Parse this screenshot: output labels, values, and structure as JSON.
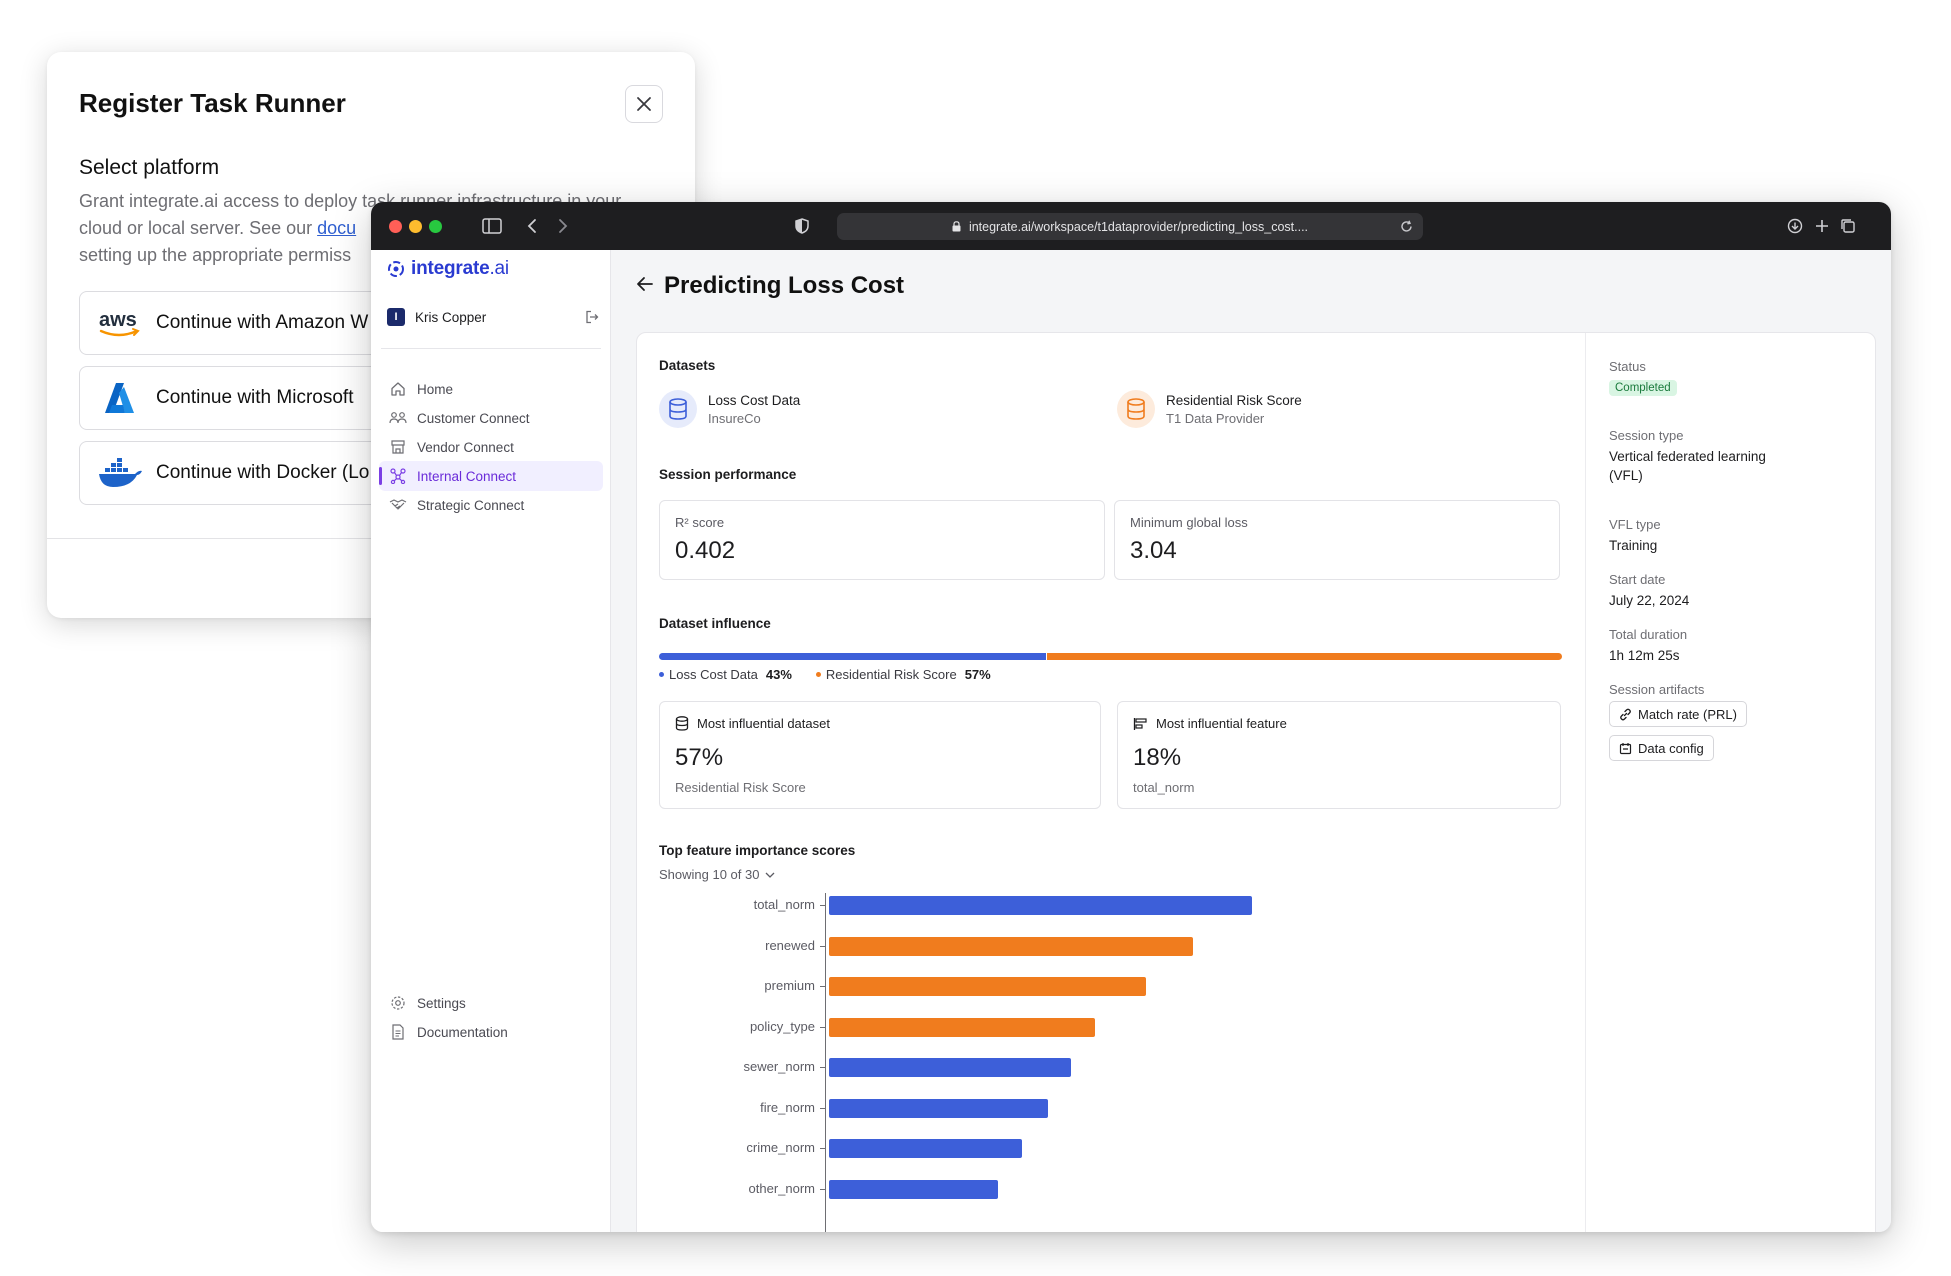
{
  "modal": {
    "title": "Register Task Runner",
    "subtitle": "Select platform",
    "desc_before_link": "Grant integrate.ai access to deploy task runner infrastructure in your cloud or local server. See our ",
    "desc_link": "docu",
    "desc_after_link": "setting up the appropriate permiss",
    "providers": [
      {
        "label": "Continue with Amazon W",
        "icon": "aws-logo"
      },
      {
        "label": "Continue with Microsoft",
        "icon": "azure-logo"
      },
      {
        "label": "Continue with Docker (Lo",
        "icon": "docker-logo"
      }
    ]
  },
  "browser": {
    "url": "integrate.ai/workspace/t1dataprovider/predicting_loss_cost...."
  },
  "sidebar": {
    "brand_bold": "integrate",
    "brand_rest": ".ai",
    "user_initial": "I",
    "user_name": "Kris Copper",
    "items": [
      {
        "label": "Home",
        "icon": "home-icon"
      },
      {
        "label": "Customer Connect",
        "icon": "customers-icon"
      },
      {
        "label": "Vendor Connect",
        "icon": "store-icon"
      },
      {
        "label": "Internal Connect",
        "icon": "network-icon",
        "active": true
      },
      {
        "label": "Strategic Connect",
        "icon": "handshake-icon"
      }
    ],
    "bottom_items": [
      {
        "label": "Settings",
        "icon": "gear-icon"
      },
      {
        "label": "Documentation",
        "icon": "document-icon"
      }
    ]
  },
  "page": {
    "title": "Predicting Loss Cost",
    "datasets_heading": "Datasets",
    "datasets": [
      {
        "name": "Loss Cost Data",
        "owner": "InsureCo",
        "color": "#3d5fd9"
      },
      {
        "name": "Residential Risk Score",
        "owner": "T1 Data Provider",
        "color": "#f07c1e"
      }
    ],
    "performance_heading": "Session performance",
    "r2_label": "R² score",
    "r2_value": "0.402",
    "loss_label": "Minimum global loss",
    "loss_value": "3.04",
    "influence_heading": "Dataset influence",
    "influence": [
      {
        "name": "Loss Cost Data",
        "pct_label": "43%",
        "pct": 43,
        "color": "#3d5fd9"
      },
      {
        "name": "Residential Risk Score",
        "pct_label": "57%",
        "pct": 57,
        "color": "#f07c1e"
      }
    ],
    "most_dataset_label": "Most influential dataset",
    "most_dataset_value": "57%",
    "most_dataset_sub": "Residential Risk Score",
    "most_feature_label": "Most influential feature",
    "most_feature_value": "18%",
    "most_feature_sub": "total_norm",
    "features_heading": "Top feature importance scores",
    "showing": "Showing 10 of 30"
  },
  "chart_data": {
    "type": "bar",
    "orientation": "horizontal",
    "title": "Top feature importance scores",
    "categories": [
      "total_norm",
      "renewed",
      "premium",
      "policy_type",
      "sewer_norm",
      "fire_norm",
      "crime_norm",
      "other_norm"
    ],
    "values": [
      18,
      15.5,
      13.5,
      11.3,
      10.3,
      9.3,
      8.2,
      7.2
    ],
    "series_colors": [
      "#3d5fd9",
      "#f07c1e",
      "#f07c1e",
      "#f07c1e",
      "#3d5fd9",
      "#3d5fd9",
      "#3d5fd9",
      "#3d5fd9"
    ],
    "xlim": [
      0,
      20
    ],
    "grid": false
  },
  "details": {
    "status_label": "Status",
    "status_value": "Completed",
    "session_type_label": "Session type",
    "session_type_value_1": "Vertical federated learning",
    "session_type_value_2": "(VFL)",
    "vfl_type_label": "VFL type",
    "vfl_type_value": "Training",
    "start_label": "Start date",
    "start_value": "July 22, 2024",
    "duration_label": "Total duration",
    "duration_value": "1h 12m 25s",
    "artifacts_label": "Session artifacts",
    "artifacts": [
      "Match rate (PRL)",
      "Data config"
    ]
  }
}
